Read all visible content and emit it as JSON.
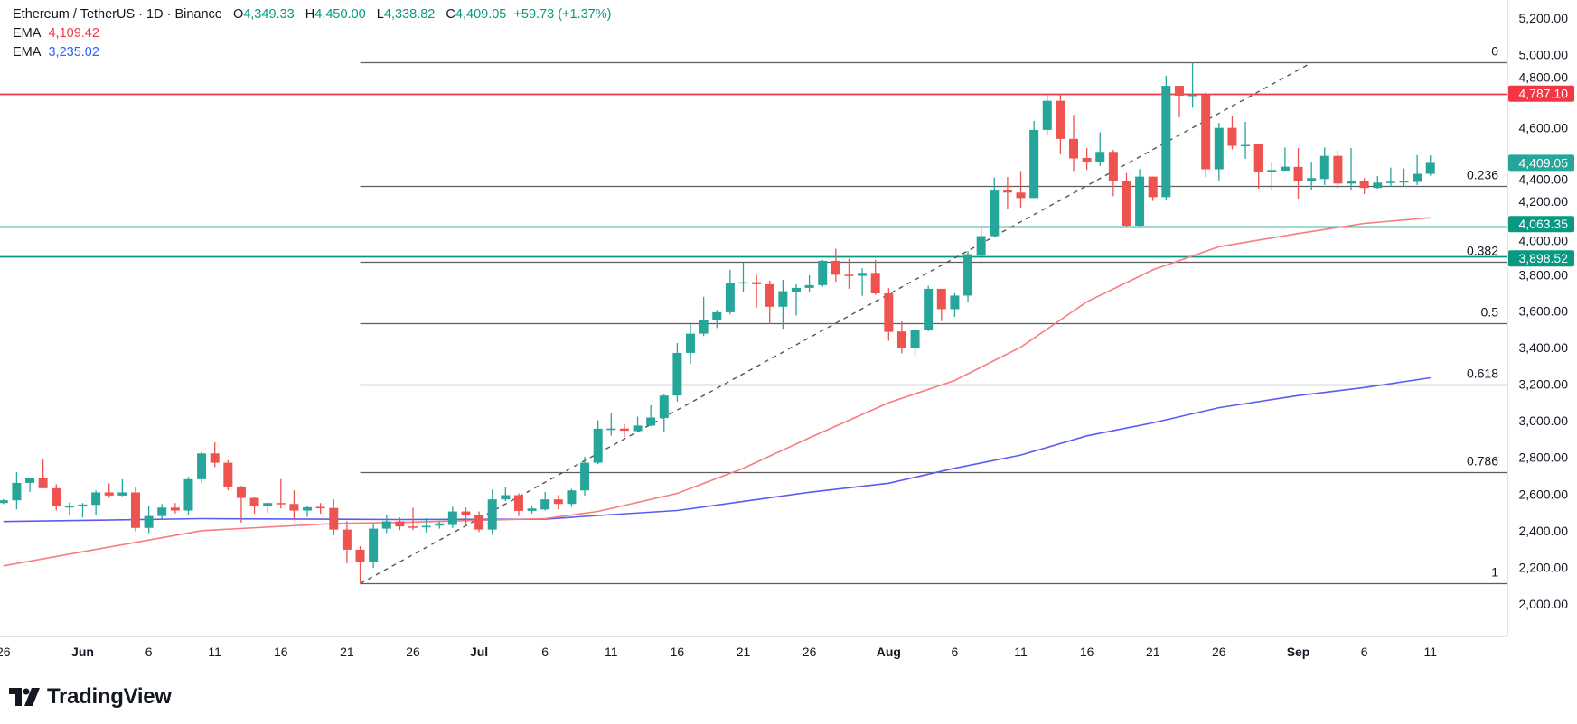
{
  "legend": {
    "symbol": "Ethereum / TetherUS · 1D · Binance",
    "o_label": "O",
    "open": "4,349.33",
    "h_label": "H",
    "high": "4,450.00",
    "l_label": "L",
    "low": "4,338.82",
    "c_label": "C",
    "close": "4,409.05",
    "change": "+59.73 (+1.37%)",
    "ema1_label": "EMA",
    "ema1_value": "4,109.42",
    "ema2_label": "EMA",
    "ema2_value": "3,235.02"
  },
  "branding": {
    "logo_text": "TradingView"
  },
  "colors": {
    "up": "#26a69a",
    "down": "#ef5350",
    "ema_fast": "#f77c80",
    "ema_slow": "#5b5cf0",
    "support": "#089981",
    "resistance": "#f23645",
    "fib": "#5d5d5d"
  },
  "chart_data": {
    "type": "candlestick",
    "title": "Ethereum / TetherUS · 1D · Binance",
    "ylim": [
      1850,
      5300
    ],
    "y_ticks": [
      "5,200.00",
      "5,000.00",
      "4,800.00",
      "4,600.00",
      "4,400.00",
      "4,200.00",
      "4,000.00",
      "3,800.00",
      "3,600.00",
      "3,400.00",
      "3,200.00",
      "3,000.00",
      "2,800.00",
      "2,600.00",
      "2,400.00",
      "2,200.00",
      "2,000.00"
    ],
    "x_ticks": [
      {
        "date": "05-26",
        "label": "26"
      },
      {
        "date": "06-01",
        "label": "Jun",
        "month": true
      },
      {
        "date": "06-06",
        "label": "6"
      },
      {
        "date": "06-11",
        "label": "11"
      },
      {
        "date": "06-16",
        "label": "16"
      },
      {
        "date": "06-21",
        "label": "21"
      },
      {
        "date": "06-26",
        "label": "26"
      },
      {
        "date": "07-01",
        "label": "Jul",
        "month": true
      },
      {
        "date": "07-06",
        "label": "6"
      },
      {
        "date": "07-11",
        "label": "11"
      },
      {
        "date": "07-16",
        "label": "16"
      },
      {
        "date": "07-21",
        "label": "21"
      },
      {
        "date": "07-26",
        "label": "26"
      },
      {
        "date": "08-01",
        "label": "Aug",
        "month": true
      },
      {
        "date": "08-06",
        "label": "6"
      },
      {
        "date": "08-11",
        "label": "11"
      },
      {
        "date": "08-16",
        "label": "16"
      },
      {
        "date": "08-21",
        "label": "21"
      },
      {
        "date": "08-26",
        "label": "26"
      },
      {
        "date": "09-01",
        "label": "Sep",
        "month": true
      },
      {
        "date": "09-06",
        "label": "6"
      },
      {
        "date": "09-11",
        "label": "11"
      }
    ],
    "candles_fields": [
      "date",
      "open",
      "high",
      "low",
      "close"
    ],
    "candles": [
      [
        "05-26",
        2551,
        2572,
        2545,
        2566
      ],
      [
        "05-27",
        2566,
        2719,
        2516,
        2661
      ],
      [
        "05-28",
        2661,
        2690,
        2612,
        2686
      ],
      [
        "05-29",
        2686,
        2793,
        2630,
        2632
      ],
      [
        "05-30",
        2632,
        2653,
        2510,
        2533
      ],
      [
        "05-31",
        2533,
        2554,
        2484,
        2534
      ],
      [
        "06-01",
        2534,
        2551,
        2472,
        2543
      ],
      [
        "06-02",
        2541,
        2620,
        2484,
        2609
      ],
      [
        "06-03",
        2609,
        2658,
        2579,
        2592
      ],
      [
        "06-04",
        2592,
        2681,
        2588,
        2609
      ],
      [
        "06-05",
        2609,
        2641,
        2397,
        2415
      ],
      [
        "06-06",
        2415,
        2535,
        2387,
        2480
      ],
      [
        "06-07",
        2480,
        2546,
        2464,
        2526
      ],
      [
        "06-08",
        2526,
        2551,
        2494,
        2510
      ],
      [
        "06-09",
        2510,
        2694,
        2484,
        2681
      ],
      [
        "06-10",
        2681,
        2830,
        2661,
        2822
      ],
      [
        "06-11",
        2822,
        2883,
        2747,
        2771
      ],
      [
        "06-12",
        2771,
        2784,
        2620,
        2641
      ],
      [
        "06-13",
        2641,
        2645,
        2444,
        2579
      ],
      [
        "06-14",
        2579,
        2584,
        2492,
        2533
      ],
      [
        "06-15",
        2533,
        2556,
        2497,
        2551
      ],
      [
        "06-16",
        2551,
        2682,
        2521,
        2546
      ],
      [
        "06-17",
        2546,
        2620,
        2456,
        2510
      ],
      [
        "06-18",
        2510,
        2535,
        2475,
        2528
      ],
      [
        "06-19",
        2530,
        2551,
        2492,
        2522
      ],
      [
        "06-20",
        2524,
        2571,
        2374,
        2406
      ],
      [
        "06-21",
        2406,
        2452,
        2222,
        2296
      ],
      [
        "06-22",
        2296,
        2316,
        2111,
        2229
      ],
      [
        "06-23",
        2229,
        2439,
        2196,
        2411
      ],
      [
        "06-24",
        2411,
        2485,
        2387,
        2451
      ],
      [
        "06-25",
        2451,
        2472,
        2403,
        2423
      ],
      [
        "06-26",
        2423,
        2525,
        2403,
        2420
      ],
      [
        "06-27",
        2418,
        2469,
        2390,
        2426
      ],
      [
        "06-28",
        2428,
        2452,
        2411,
        2440
      ],
      [
        "06-29",
        2431,
        2530,
        2415,
        2505
      ],
      [
        "06-30",
        2505,
        2526,
        2431,
        2488
      ],
      [
        "07-01",
        2488,
        2505,
        2393,
        2406
      ],
      [
        "07-02",
        2406,
        2625,
        2377,
        2571
      ],
      [
        "07-03",
        2571,
        2640,
        2562,
        2594
      ],
      [
        "07-04",
        2594,
        2604,
        2480,
        2508
      ],
      [
        "07-05",
        2508,
        2533,
        2494,
        2521
      ],
      [
        "07-06",
        2516,
        2612,
        2510,
        2571
      ],
      [
        "07-07",
        2571,
        2595,
        2516,
        2546
      ],
      [
        "07-08",
        2546,
        2628,
        2530,
        2620
      ],
      [
        "07-09",
        2620,
        2804,
        2592,
        2771
      ],
      [
        "07-10",
        2771,
        3003,
        2763,
        2957
      ],
      [
        "07-11",
        2950,
        3042,
        2919,
        2958
      ],
      [
        "07-12",
        2958,
        2982,
        2911,
        2946
      ],
      [
        "07-13",
        2944,
        3023,
        2940,
        2974
      ],
      [
        "07-14",
        2974,
        3085,
        2970,
        3018
      ],
      [
        "07-15",
        3015,
        3146,
        2937,
        3138
      ],
      [
        "07-16",
        3138,
        3425,
        3105,
        3371
      ],
      [
        "07-17",
        3371,
        3527,
        3310,
        3476
      ],
      [
        "07-18",
        3476,
        3677,
        3463,
        3549
      ],
      [
        "07-19",
        3549,
        3606,
        3507,
        3593
      ],
      [
        "07-20",
        3593,
        3825,
        3581,
        3754
      ],
      [
        "07-21",
        3754,
        3864,
        3705,
        3757
      ],
      [
        "07-22",
        3757,
        3798,
        3618,
        3746
      ],
      [
        "07-23",
        3746,
        3765,
        3529,
        3623
      ],
      [
        "07-24",
        3623,
        3770,
        3503,
        3708
      ],
      [
        "07-25",
        3705,
        3746,
        3576,
        3726
      ],
      [
        "07-26",
        3726,
        3795,
        3700,
        3741
      ],
      [
        "07-27",
        3741,
        3880,
        3733,
        3874
      ],
      [
        "07-28",
        3874,
        3940,
        3759,
        3798
      ],
      [
        "07-29",
        3798,
        3885,
        3721,
        3792
      ],
      [
        "07-30",
        3792,
        3833,
        3683,
        3808
      ],
      [
        "07-31",
        3808,
        3880,
        3688,
        3696
      ],
      [
        "08-01",
        3696,
        3725,
        3437,
        3486
      ],
      [
        "08-02",
        3488,
        3544,
        3368,
        3396
      ],
      [
        "08-03",
        3396,
        3503,
        3357,
        3496
      ],
      [
        "08-04",
        3496,
        3738,
        3490,
        3721
      ],
      [
        "08-05",
        3721,
        3721,
        3545,
        3610
      ],
      [
        "08-06",
        3610,
        3697,
        3568,
        3684
      ],
      [
        "08-07",
        3684,
        3927,
        3647,
        3910
      ],
      [
        "08-08",
        3902,
        4063,
        3881,
        4009
      ],
      [
        "08-09",
        4009,
        4329,
        4009,
        4258
      ],
      [
        "08-10",
        4258,
        4332,
        4157,
        4247
      ],
      [
        "08-11",
        4247,
        4365,
        4165,
        4217
      ],
      [
        "08-12",
        4217,
        4638,
        4217,
        4589
      ],
      [
        "08-13",
        4589,
        4784,
        4562,
        4748
      ],
      [
        "08-14",
        4748,
        4784,
        4456,
        4540
      ],
      [
        "08-15",
        4540,
        4671,
        4365,
        4433
      ],
      [
        "08-16",
        4436,
        4489,
        4370,
        4416
      ],
      [
        "08-17",
        4416,
        4576,
        4392,
        4469
      ],
      [
        "08-18",
        4469,
        4480,
        4227,
        4310
      ],
      [
        "08-19",
        4310,
        4354,
        4063,
        4066
      ],
      [
        "08-20",
        4066,
        4375,
        4063,
        4334
      ],
      [
        "08-21",
        4334,
        4334,
        4201,
        4222
      ],
      [
        "08-22",
        4222,
        4885,
        4206,
        4830
      ],
      [
        "08-23",
        4830,
        4830,
        4658,
        4776
      ],
      [
        "08-24",
        4776,
        4956,
        4710,
        4781
      ],
      [
        "08-25",
        4781,
        4797,
        4332,
        4374
      ],
      [
        "08-26",
        4374,
        4628,
        4313,
        4600
      ],
      [
        "08-27",
        4600,
        4663,
        4482,
        4502
      ],
      [
        "08-28",
        4505,
        4633,
        4431,
        4507
      ],
      [
        "08-29",
        4510,
        4513,
        4268,
        4359
      ],
      [
        "08-30",
        4359,
        4411,
        4258,
        4370
      ],
      [
        "08-31",
        4367,
        4493,
        4365,
        4388
      ],
      [
        "09-01",
        4387,
        4490,
        4214,
        4309
      ],
      [
        "09-02",
        4309,
        4411,
        4258,
        4326
      ],
      [
        "09-03",
        4321,
        4493,
        4288,
        4447
      ],
      [
        "09-04",
        4447,
        4480,
        4268,
        4296
      ],
      [
        "09-05",
        4296,
        4490,
        4258,
        4309
      ],
      [
        "09-06",
        4309,
        4326,
        4239,
        4272
      ],
      [
        "09-07",
        4272,
        4337,
        4268,
        4301
      ],
      [
        "09-08",
        4301,
        4383,
        4280,
        4306
      ],
      [
        "09-09",
        4305,
        4378,
        4277,
        4309
      ],
      [
        "09-10",
        4305,
        4452,
        4288,
        4349.33
      ],
      [
        "09-11",
        4349.33,
        4450,
        4338.82,
        4409.05
      ]
    ],
    "ema_fast": [
      [
        "05-26",
        2208
      ],
      [
        "06-01",
        2285
      ],
      [
        "06-10",
        2400
      ],
      [
        "06-20",
        2439
      ],
      [
        "06-25",
        2445
      ],
      [
        "07-06",
        2466
      ],
      [
        "07-10",
        2505
      ],
      [
        "07-16",
        2604
      ],
      [
        "07-21",
        2741
      ],
      [
        "07-26",
        2907
      ],
      [
        "08-01",
        3099
      ],
      [
        "08-06",
        3220
      ],
      [
        "08-11",
        3402
      ],
      [
        "08-16",
        3650
      ],
      [
        "08-21",
        3825
      ],
      [
        "08-26",
        3951
      ],
      [
        "09-01",
        4023
      ],
      [
        "09-06",
        4078
      ],
      [
        "09-11",
        4109.42
      ]
    ],
    "ema_slow": [
      [
        "05-26",
        2450
      ],
      [
        "06-10",
        2466
      ],
      [
        "06-25",
        2461
      ],
      [
        "07-06",
        2463
      ],
      [
        "07-10",
        2483
      ],
      [
        "07-16",
        2510
      ],
      [
        "07-21",
        2560
      ],
      [
        "07-26",
        2610
      ],
      [
        "08-01",
        2659
      ],
      [
        "08-06",
        2741
      ],
      [
        "08-11",
        2813
      ],
      [
        "08-16",
        2918
      ],
      [
        "08-21",
        2989
      ],
      [
        "08-26",
        3072
      ],
      [
        "09-01",
        3138
      ],
      [
        "09-06",
        3182
      ],
      [
        "09-11",
        3235.02
      ]
    ],
    "horizontal_lines": [
      {
        "price": 4787.1,
        "label": "4,787.10",
        "kind": "resistance"
      },
      {
        "price": 4063.35,
        "label": "4,063.35",
        "kind": "support"
      },
      {
        "price": 3898.52,
        "label": "3,898.52",
        "kind": "support"
      }
    ],
    "last_price": {
      "price": 4409.05,
      "label": "4,409.05"
    },
    "fibonacci": {
      "start_date": "06-22",
      "levels": [
        {
          "ratio": "0",
          "price": 4956
        },
        {
          "ratio": "0.236",
          "price": 4285
        },
        {
          "ratio": "0.382",
          "price": 3869
        },
        {
          "ratio": "0.5",
          "price": 3533
        },
        {
          "ratio": "0.618",
          "price": 3198
        },
        {
          "ratio": "0.786",
          "price": 2720
        },
        {
          "ratio": "1",
          "price": 2111
        }
      ]
    },
    "trendline": [
      [
        "06-22",
        2111
      ],
      [
        "09-02",
        4956
      ]
    ]
  }
}
